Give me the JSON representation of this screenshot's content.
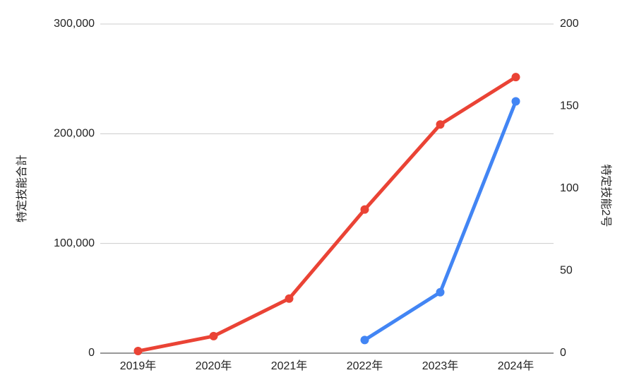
{
  "chart_data": {
    "type": "line",
    "categories": [
      "2019年",
      "2020年",
      "2021年",
      "2022年",
      "2023年",
      "2024年"
    ],
    "series": [
      {
        "name": "特定技能合計",
        "color": "#ea4335",
        "values": [
          1900,
          15500,
          49700,
          130900,
          208400,
          251600
        ]
      },
      {
        "name": "特定技能2号",
        "color": "#4285f4",
        "axis": "y2",
        "values": [
          null,
          null,
          null,
          8,
          37,
          153
        ]
      }
    ],
    "ylabel": "特定技能合計",
    "y2label": "特定技能2号",
    "ylim": [
      0,
      300000
    ],
    "yticks": [
      0,
      {
        "value": 100000,
        "label": "100,000"
      },
      {
        "value": 200000,
        "label": "200,000"
      },
      {
        "value": 300000,
        "label": "300,000"
      }
    ],
    "y2lim": [
      0,
      200
    ],
    "y2ticks": [
      0,
      50,
      100,
      150,
      200
    ],
    "grid": true
  }
}
